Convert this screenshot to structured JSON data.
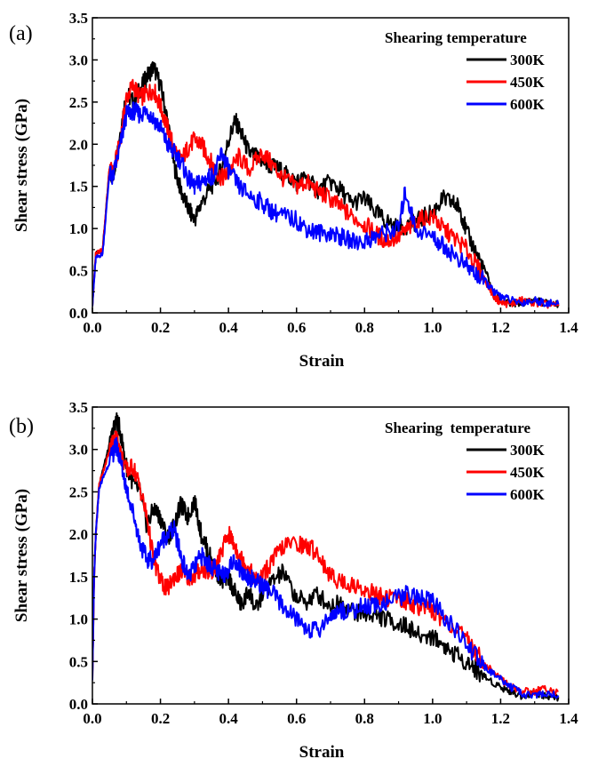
{
  "chart_data": [
    {
      "panel_label": "(a)",
      "type": "line",
      "xlabel": "Strain",
      "ylabel": "Shear stress (GPa)",
      "xlim": [
        0.0,
        1.4
      ],
      "ylim": [
        0.0,
        3.5
      ],
      "xticks": [
        "0.0",
        "0.2",
        "0.4",
        "0.6",
        "0.8",
        "1.0",
        "1.2",
        "1.4"
      ],
      "yticks": [
        "0.0",
        "0.5",
        "1.0",
        "1.5",
        "2.0",
        "2.5",
        "3.0",
        "3.5"
      ],
      "legend_title": "Shearing temperature",
      "legend_position": "top-right",
      "grid": false,
      "series": [
        {
          "name": "300K",
          "color": "#000000",
          "x": [
            0.0,
            0.01,
            0.03,
            0.05,
            0.06,
            0.08,
            0.1,
            0.12,
            0.14,
            0.16,
            0.18,
            0.2,
            0.22,
            0.24,
            0.26,
            0.28,
            0.3,
            0.32,
            0.35,
            0.38,
            0.4,
            0.42,
            0.44,
            0.46,
            0.48,
            0.5,
            0.52,
            0.55,
            0.58,
            0.6,
            0.63,
            0.66,
            0.7,
            0.73,
            0.76,
            0.8,
            0.83,
            0.86,
            0.9,
            0.93,
            0.96,
            1.0,
            1.03,
            1.06,
            1.08,
            1.1,
            1.13,
            1.16,
            1.18,
            1.2,
            1.23,
            1.26,
            1.3,
            1.33,
            1.37
          ],
          "y": [
            0.1,
            0.7,
            0.75,
            1.7,
            1.6,
            2.1,
            2.6,
            2.5,
            2.65,
            2.8,
            2.92,
            2.7,
            2.3,
            1.75,
            1.45,
            1.25,
            1.1,
            1.3,
            1.5,
            1.7,
            2.05,
            2.28,
            2.1,
            1.9,
            1.85,
            1.8,
            1.75,
            1.7,
            1.6,
            1.55,
            1.6,
            1.45,
            1.55,
            1.45,
            1.3,
            1.35,
            1.2,
            1.1,
            1.0,
            1.05,
            1.1,
            1.2,
            1.35,
            1.3,
            1.25,
            0.95,
            0.7,
            0.45,
            0.2,
            0.15,
            0.1,
            0.12,
            0.15,
            0.12,
            0.1
          ]
        },
        {
          "name": "450K",
          "color": "#ff0000",
          "x": [
            0.0,
            0.01,
            0.03,
            0.05,
            0.06,
            0.08,
            0.1,
            0.12,
            0.14,
            0.16,
            0.18,
            0.2,
            0.22,
            0.24,
            0.26,
            0.28,
            0.3,
            0.32,
            0.34,
            0.36,
            0.38,
            0.4,
            0.43,
            0.46,
            0.5,
            0.53,
            0.56,
            0.6,
            0.63,
            0.66,
            0.7,
            0.73,
            0.76,
            0.8,
            0.83,
            0.86,
            0.9,
            0.93,
            0.96,
            1.0,
            1.03,
            1.06,
            1.1,
            1.13,
            1.16,
            1.18,
            1.2,
            1.23,
            1.26,
            1.3,
            1.33,
            1.37
          ],
          "y": [
            0.1,
            0.7,
            0.75,
            1.7,
            1.65,
            2.0,
            2.55,
            2.7,
            2.55,
            2.6,
            2.65,
            2.45,
            2.2,
            1.95,
            1.8,
            1.95,
            2.05,
            2.0,
            1.85,
            1.7,
            1.6,
            1.65,
            1.85,
            1.7,
            1.9,
            1.75,
            1.6,
            1.5,
            1.55,
            1.45,
            1.35,
            1.25,
            1.15,
            1.05,
            0.95,
            0.85,
            0.9,
            1.0,
            1.1,
            1.15,
            1.0,
            0.9,
            0.75,
            0.55,
            0.35,
            0.2,
            0.12,
            0.1,
            0.15,
            0.12,
            0.1,
            0.08
          ]
        },
        {
          "name": "600K",
          "color": "#0000ff",
          "x": [
            0.0,
            0.01,
            0.03,
            0.05,
            0.06,
            0.08,
            0.1,
            0.12,
            0.14,
            0.16,
            0.18,
            0.2,
            0.22,
            0.24,
            0.26,
            0.28,
            0.3,
            0.32,
            0.34,
            0.36,
            0.38,
            0.4,
            0.43,
            0.46,
            0.5,
            0.53,
            0.56,
            0.6,
            0.63,
            0.66,
            0.7,
            0.73,
            0.76,
            0.8,
            0.83,
            0.86,
            0.9,
            0.92,
            0.95,
            1.0,
            1.03,
            1.06,
            1.1,
            1.13,
            1.16,
            1.18,
            1.2,
            1.23,
            1.26,
            1.3,
            1.33,
            1.37
          ],
          "y": [
            0.1,
            0.65,
            0.7,
            1.65,
            1.6,
            1.95,
            2.35,
            2.4,
            2.35,
            2.4,
            2.3,
            2.2,
            2.0,
            1.9,
            1.8,
            1.6,
            1.5,
            1.55,
            1.6,
            1.65,
            1.9,
            1.7,
            1.5,
            1.4,
            1.3,
            1.2,
            1.15,
            1.1,
            1.0,
            0.95,
            0.95,
            0.9,
            0.85,
            0.85,
            0.9,
            0.95,
            1.0,
            1.45,
            1.0,
            0.9,
            0.8,
            0.7,
            0.55,
            0.45,
            0.35,
            0.25,
            0.2,
            0.15,
            0.12,
            0.15,
            0.12,
            0.1
          ]
        }
      ]
    },
    {
      "panel_label": "(b)",
      "type": "line",
      "xlabel": "Strain",
      "ylabel": "Shear stress (GPa)",
      "xlim": [
        0.0,
        1.4
      ],
      "ylim": [
        0.0,
        3.5
      ],
      "xticks": [
        "0.0",
        "0.2",
        "0.4",
        "0.6",
        "0.8",
        "1.0",
        "1.2",
        "1.4"
      ],
      "yticks": [
        "0.0",
        "0.5",
        "1.0",
        "1.5",
        "2.0",
        "2.5",
        "3.0",
        "3.5"
      ],
      "legend_title": "Shearing  temperature",
      "legend_position": "top-right",
      "grid": false,
      "series": [
        {
          "name": "300K",
          "color": "#000000",
          "x": [
            0.0,
            0.005,
            0.01,
            0.02,
            0.04,
            0.06,
            0.07,
            0.08,
            0.1,
            0.12,
            0.14,
            0.16,
            0.18,
            0.2,
            0.22,
            0.24,
            0.26,
            0.28,
            0.3,
            0.32,
            0.34,
            0.36,
            0.38,
            0.4,
            0.42,
            0.44,
            0.46,
            0.48,
            0.5,
            0.53,
            0.56,
            0.6,
            0.63,
            0.66,
            0.7,
            0.73,
            0.76,
            0.8,
            0.83,
            0.86,
            0.9,
            0.93,
            0.96,
            1.0,
            1.03,
            1.06,
            1.1,
            1.13,
            1.16,
            1.2,
            1.23,
            1.26,
            1.3,
            1.33,
            1.37
          ],
          "y": [
            0.3,
            1.5,
            2.0,
            2.6,
            2.9,
            3.2,
            3.35,
            3.25,
            2.8,
            2.6,
            2.5,
            2.1,
            2.3,
            2.2,
            1.95,
            2.1,
            2.35,
            2.2,
            2.4,
            2.0,
            1.8,
            1.6,
            1.45,
            1.5,
            1.3,
            1.15,
            1.35,
            1.1,
            1.3,
            1.45,
            1.55,
            1.25,
            1.2,
            1.3,
            1.15,
            1.2,
            1.1,
            1.05,
            1.05,
            1.0,
            0.95,
            0.9,
            0.8,
            0.8,
            0.7,
            0.6,
            0.5,
            0.4,
            0.3,
            0.2,
            0.15,
            0.1,
            0.12,
            0.1,
            0.08
          ]
        },
        {
          "name": "450K",
          "color": "#ff0000",
          "x": [
            0.0,
            0.005,
            0.01,
            0.02,
            0.04,
            0.06,
            0.07,
            0.08,
            0.1,
            0.12,
            0.14,
            0.16,
            0.18,
            0.2,
            0.22,
            0.24,
            0.26,
            0.28,
            0.3,
            0.32,
            0.34,
            0.36,
            0.38,
            0.4,
            0.42,
            0.44,
            0.46,
            0.48,
            0.5,
            0.53,
            0.56,
            0.6,
            0.63,
            0.66,
            0.7,
            0.73,
            0.76,
            0.8,
            0.83,
            0.86,
            0.9,
            0.93,
            0.96,
            1.0,
            1.03,
            1.06,
            1.1,
            1.13,
            1.16,
            1.2,
            1.23,
            1.26,
            1.3,
            1.33,
            1.37
          ],
          "y": [
            0.3,
            1.5,
            2.0,
            2.6,
            2.85,
            3.1,
            3.15,
            3.0,
            2.75,
            2.8,
            2.55,
            2.2,
            1.7,
            1.45,
            1.35,
            1.5,
            1.55,
            1.5,
            1.5,
            1.6,
            1.55,
            1.6,
            1.8,
            2.0,
            1.85,
            1.7,
            1.6,
            1.45,
            1.5,
            1.7,
            1.85,
            1.9,
            1.85,
            1.8,
            1.5,
            1.45,
            1.4,
            1.35,
            1.3,
            1.25,
            1.25,
            1.2,
            1.15,
            1.1,
            1.0,
            0.9,
            0.75,
            0.6,
            0.45,
            0.3,
            0.2,
            0.15,
            0.15,
            0.18,
            0.15
          ]
        },
        {
          "name": "600K",
          "color": "#0000ff",
          "x": [
            0.0,
            0.005,
            0.01,
            0.02,
            0.04,
            0.06,
            0.07,
            0.08,
            0.1,
            0.12,
            0.14,
            0.16,
            0.18,
            0.2,
            0.22,
            0.24,
            0.26,
            0.28,
            0.3,
            0.32,
            0.34,
            0.36,
            0.38,
            0.4,
            0.42,
            0.44,
            0.46,
            0.48,
            0.5,
            0.53,
            0.56,
            0.6,
            0.63,
            0.66,
            0.7,
            0.73,
            0.76,
            0.8,
            0.83,
            0.86,
            0.9,
            0.93,
            0.96,
            1.0,
            1.03,
            1.06,
            1.1,
            1.13,
            1.16,
            1.2,
            1.23,
            1.26,
            1.3,
            1.33,
            1.37
          ],
          "y": [
            0.3,
            1.5,
            2.0,
            2.55,
            2.75,
            2.95,
            3.05,
            2.9,
            2.55,
            2.25,
            1.9,
            1.7,
            1.7,
            1.9,
            2.0,
            2.05,
            1.75,
            1.5,
            1.6,
            1.75,
            1.65,
            1.6,
            1.5,
            1.6,
            1.7,
            1.55,
            1.5,
            1.45,
            1.4,
            1.3,
            1.15,
            1.0,
            0.9,
            0.85,
            1.05,
            1.1,
            1.1,
            1.15,
            1.15,
            1.2,
            1.25,
            1.3,
            1.25,
            1.2,
            1.05,
            0.9,
            0.7,
            0.55,
            0.4,
            0.3,
            0.2,
            0.12,
            0.1,
            0.12,
            0.1
          ]
        }
      ]
    }
  ]
}
